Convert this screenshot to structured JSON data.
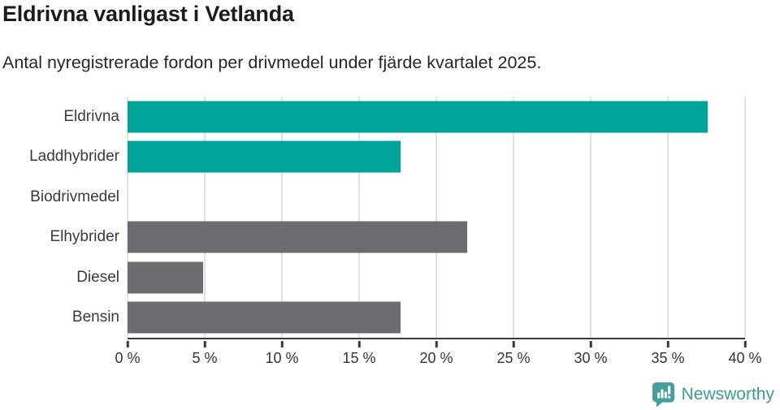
{
  "header": {
    "title": "Eldrivna vanligast i Vetlanda",
    "subtitle": "Antal nyregistrerade fordon per drivmedel under fjärde kvartalet 2025."
  },
  "chart_data": {
    "type": "bar",
    "orientation": "horizontal",
    "title": "Eldrivna vanligast i Vetlanda",
    "subtitle": "Antal nyregistrerade fordon per drivmedel under fjärde kvartalet 2025.",
    "categories": [
      "Eldrivna",
      "Laddhybrider",
      "Biodrivmedel",
      "Elhybrider",
      "Diesel",
      "Bensin"
    ],
    "values": [
      37.6,
      17.7,
      0,
      22,
      4.9,
      17.7
    ],
    "unit": "%",
    "bar_colors": [
      "#00a49b",
      "#00a49b",
      "#00a49b",
      "#6d6d71",
      "#6d6d71",
      "#6d6d71"
    ],
    "xlabel": "",
    "ylabel": "",
    "xlim": [
      0,
      40
    ],
    "x_ticks": [
      0,
      5,
      10,
      15,
      20,
      25,
      30,
      35,
      40
    ],
    "x_tick_labels": [
      "0 %",
      "5 %",
      "10 %",
      "15 %",
      "20 %",
      "25 %",
      "30 %",
      "35 %",
      "40 %"
    ],
    "grid": "vertical",
    "legend": "none"
  },
  "colors": {
    "accent_teal": "#00a49b",
    "neutral_gray": "#6d6d71",
    "brand_teal": "#3d9b94",
    "gridline": "#e2e2e2",
    "axis": "#3a3a3a"
  },
  "footer": {
    "brand": "Newsworthy",
    "logo_icon": "newsworthy-bar-chart-bubble-icon"
  }
}
